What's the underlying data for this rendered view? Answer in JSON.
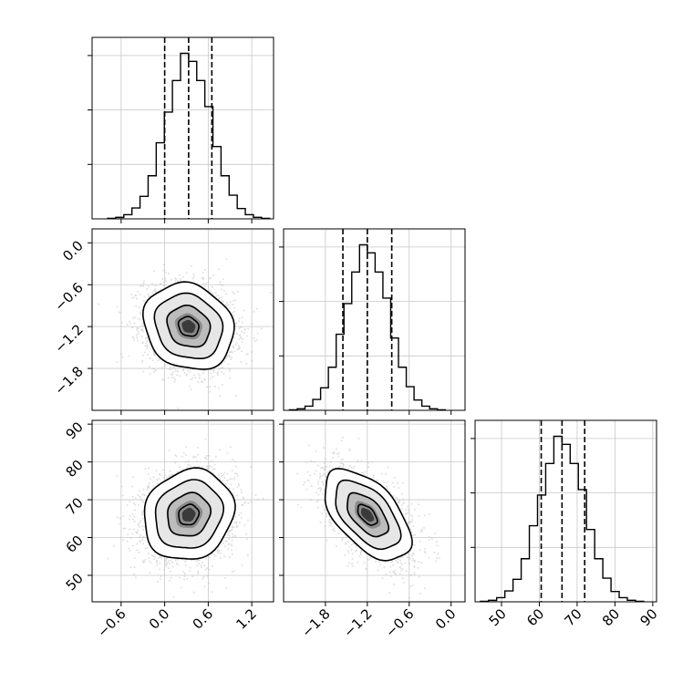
{
  "chart_data": {
    "type": "corner",
    "parameters": [
      {
        "lim": [
          -1.0,
          1.5
        ],
        "ticks": [
          -0.6,
          0.0,
          0.6,
          1.2
        ],
        "tick_labels": [
          "−0.6",
          "0.0",
          "0.6",
          "1.2"
        ],
        "mean": 0.33,
        "sd": 0.31,
        "quantiles": [
          0.0,
          0.33,
          0.65
        ]
      },
      {
        "lim": [
          -2.4,
          0.2
        ],
        "ticks": [
          -1.8,
          -1.2,
          -0.6,
          0.0
        ],
        "tick_labels": [
          "−1.8",
          "−1.2",
          "−0.6",
          "0.0"
        ],
        "mean": -1.2,
        "sd": 0.31,
        "quantiles": [
          -1.55,
          -1.2,
          -0.85
        ]
      },
      {
        "lim": [
          43,
          91
        ],
        "ticks": [
          50,
          60,
          70,
          80,
          90
        ],
        "tick_labels": [
          "50",
          "60",
          "70",
          "80",
          "90"
        ],
        "mean": 66,
        "sd": 6,
        "quantiles": [
          60.5,
          66.0,
          72.0
        ]
      }
    ],
    "hist_bins": 20,
    "quantile_lines": "dashed",
    "density_contours": 4,
    "grid": true,
    "pairs": [
      {
        "row": 1,
        "col": 0,
        "x_param": 0,
        "y_param": 1,
        "correlation": -0.15
      },
      {
        "row": 2,
        "col": 0,
        "x_param": 0,
        "y_param": 2,
        "correlation": 0.12
      },
      {
        "row": 2,
        "col": 1,
        "x_param": 1,
        "y_param": 2,
        "correlation": -0.55
      }
    ]
  }
}
